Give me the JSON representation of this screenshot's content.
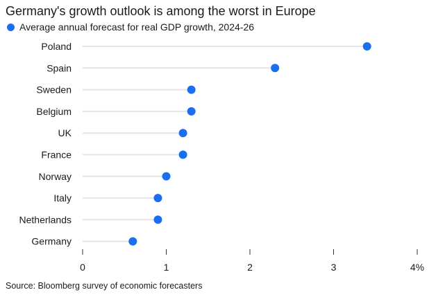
{
  "chart_data": {
    "type": "dot",
    "title": "Germany's growth outlook is among the worst in Europe",
    "legend": {
      "label": "Average annual forecast for real GDP growth, 2024-26",
      "placement": "top-left"
    },
    "categories": [
      "Poland",
      "Spain",
      "Sweden",
      "Belgium",
      "UK",
      "France",
      "Norway",
      "Italy",
      "Netherlands",
      "Germany"
    ],
    "series": [
      {
        "name": "Average annual forecast for real GDP growth, 2024-26",
        "values": [
          3.4,
          2.3,
          1.3,
          1.3,
          1.2,
          1.2,
          1.0,
          0.9,
          0.9,
          0.6
        ],
        "color": "#1a6fee"
      }
    ],
    "xlim": [
      0,
      4
    ],
    "xticks": [
      0,
      1,
      2,
      3,
      4
    ],
    "xtick_labels": [
      "0",
      "1",
      "2",
      "3",
      "4%"
    ],
    "grid": false,
    "source": "Source: Bloomberg survey of economic forecasters"
  }
}
